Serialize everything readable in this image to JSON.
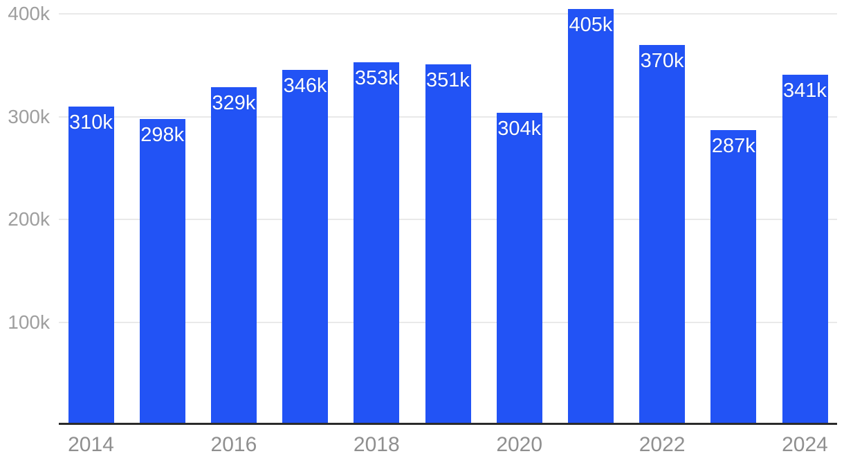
{
  "chart_data": {
    "type": "bar",
    "title": "",
    "xlabel": "",
    "ylabel": "",
    "unit": "k",
    "categories": [
      "2014",
      "2015",
      "2016",
      "2017",
      "2018",
      "2019",
      "2020",
      "2021",
      "2022",
      "2023",
      "2024"
    ],
    "values": [
      310,
      298,
      329,
      346,
      353,
      351,
      304,
      405,
      370,
      287,
      341
    ],
    "bar_labels": [
      "310k",
      "298k",
      "329k",
      "346k",
      "353k",
      "351k",
      "304k",
      "405k",
      "370k",
      "287k",
      "341k"
    ],
    "y_ticks": [
      {
        "value": 100,
        "label": "100k"
      },
      {
        "value": 200,
        "label": "200k"
      },
      {
        "value": 300,
        "label": "300k"
      },
      {
        "value": 400,
        "label": "400k"
      }
    ],
    "x_tick_labels": [
      "2014",
      "2016",
      "2018",
      "2020",
      "2022",
      "2024"
    ],
    "x_tick_indices": [
      0,
      2,
      4,
      6,
      8,
      10
    ],
    "ylim": [
      0,
      414
    ],
    "grid": true,
    "legend": "none",
    "colors": {
      "bar": "#2253f5",
      "bar_label_text": "#ffffff",
      "grid": "#e9e9e9",
      "axis": "#2b2b2b",
      "y_tick_text": "#9e9e9e",
      "x_tick_text": "#8f8f8f",
      "background": "#ffffff"
    }
  }
}
